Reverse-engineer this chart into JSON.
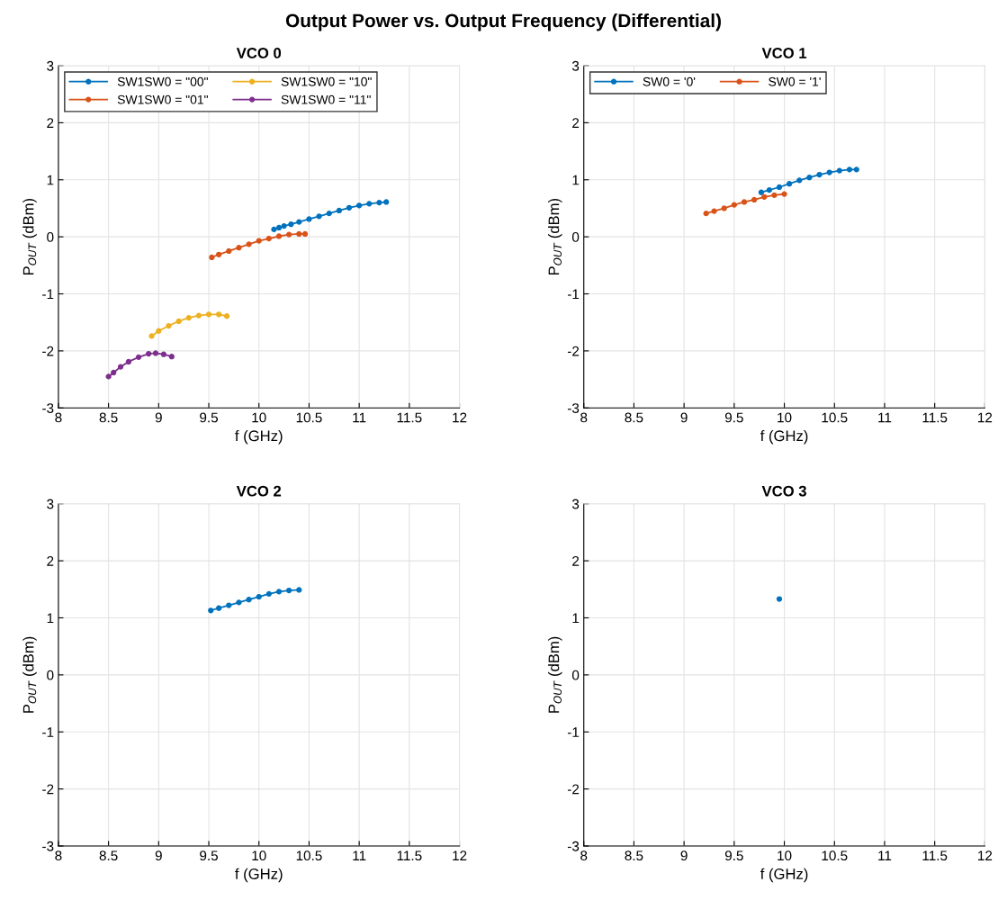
{
  "chart_data": [
    {
      "type": "line",
      "title": "VCO 0",
      "annotations": [
        "Output Power vs. Output Frequency (Differential)"
      ],
      "xlabel": "f (GHz)",
      "ylabel": "P$_{OUT}$ (dBm)",
      "xlim": [
        8,
        12
      ],
      "ylim": [
        -3,
        3
      ],
      "xticks": [
        8,
        8.5,
        9,
        9.5,
        10,
        10.5,
        11,
        11.5,
        12
      ],
      "yticks": [
        -3,
        -2,
        -1,
        0,
        1,
        2,
        3
      ],
      "grid": true,
      "legend": "top left",
      "marker": "circle",
      "line_style": "solid",
      "series": [
        {
          "name": "SW1SW0 = \"00\"",
          "color": "#0072bd",
          "x": [
            10.15,
            10.2,
            10.25,
            10.32,
            10.4,
            10.5,
            10.6,
            10.7,
            10.8,
            10.9,
            11.0,
            11.1,
            11.2,
            11.27
          ],
          "values": [
            0.13,
            0.16,
            0.19,
            0.22,
            0.26,
            0.31,
            0.36,
            0.41,
            0.46,
            0.51,
            0.55,
            0.58,
            0.6,
            0.61
          ]
        },
        {
          "name": "SW1SW0 = \"01\"",
          "color": "#d95319",
          "x": [
            9.53,
            9.6,
            9.7,
            9.8,
            9.9,
            10.0,
            10.1,
            10.2,
            10.3,
            10.4,
            10.46
          ],
          "values": [
            -0.36,
            -0.31,
            -0.25,
            -0.19,
            -0.13,
            -0.07,
            -0.03,
            0.01,
            0.04,
            0.05,
            0.05
          ]
        },
        {
          "name": "SW1SW0 = \"10\"",
          "color": "#edb120",
          "x": [
            8.93,
            9.0,
            9.1,
            9.2,
            9.3,
            9.4,
            9.5,
            9.6,
            9.68
          ],
          "values": [
            -1.74,
            -1.65,
            -1.56,
            -1.48,
            -1.42,
            -1.38,
            -1.36,
            -1.36,
            -1.39
          ]
        },
        {
          "name": "SW1SW0 = \"11\"",
          "color": "#7e2f8e",
          "x": [
            8.5,
            8.55,
            8.62,
            8.7,
            8.8,
            8.9,
            8.97,
            9.05,
            9.13
          ],
          "values": [
            -2.45,
            -2.38,
            -2.28,
            -2.19,
            -2.11,
            -2.05,
            -2.04,
            -2.06,
            -2.1
          ]
        }
      ]
    },
    {
      "type": "line",
      "title": "VCO 1",
      "xlabel": "f (GHz)",
      "ylabel": "P$_{OUT}$ (dBm)",
      "xlim": [
        8,
        12
      ],
      "ylim": [
        -3,
        3
      ],
      "xticks": [
        8,
        8.5,
        9,
        9.5,
        10,
        10.5,
        11,
        11.5,
        12
      ],
      "yticks": [
        -3,
        -2,
        -1,
        0,
        1,
        2,
        3
      ],
      "grid": true,
      "legend": "top left",
      "marker": "circle",
      "line_style": "solid",
      "series": [
        {
          "name": "SW0 = '0'",
          "color": "#0072bd",
          "x": [
            9.77,
            9.85,
            9.95,
            10.05,
            10.15,
            10.25,
            10.35,
            10.45,
            10.55,
            10.65,
            10.72
          ],
          "values": [
            0.78,
            0.82,
            0.87,
            0.93,
            0.99,
            1.04,
            1.09,
            1.13,
            1.16,
            1.18,
            1.18
          ]
        },
        {
          "name": "SW0 = '1'",
          "color": "#d95319",
          "x": [
            9.22,
            9.3,
            9.4,
            9.5,
            9.6,
            9.7,
            9.8,
            9.9,
            10.0
          ],
          "values": [
            0.41,
            0.45,
            0.5,
            0.56,
            0.61,
            0.65,
            0.7,
            0.73,
            0.75
          ]
        }
      ]
    },
    {
      "type": "line",
      "title": "VCO 2",
      "xlabel": "f (GHz)",
      "ylabel": "P$_{OUT}$ (dBm)",
      "xlim": [
        8,
        12
      ],
      "ylim": [
        -3,
        3
      ],
      "xticks": [
        8,
        8.5,
        9,
        9.5,
        10,
        10.5,
        11,
        11.5,
        12
      ],
      "yticks": [
        -3,
        -2,
        -1,
        0,
        1,
        2,
        3
      ],
      "grid": true,
      "marker": "circle",
      "line_style": "solid",
      "series": [
        {
          "color": "#0072bd",
          "x": [
            9.52,
            9.6,
            9.7,
            9.8,
            9.9,
            10.0,
            10.1,
            10.2,
            10.3,
            10.4
          ],
          "values": [
            1.13,
            1.17,
            1.22,
            1.27,
            1.32,
            1.37,
            1.42,
            1.46,
            1.48,
            1.49
          ]
        }
      ]
    },
    {
      "type": "line",
      "title": "VCO 3",
      "xlabel": "f (GHz)",
      "ylabel": "P$_{OUT}$ (dBm)",
      "xlim": [
        8,
        12
      ],
      "ylim": [
        -3,
        3
      ],
      "xticks": [
        8,
        8.5,
        9,
        9.5,
        10,
        10.5,
        11,
        11.5,
        12
      ],
      "yticks": [
        -3,
        -2,
        -1,
        0,
        1,
        2,
        3
      ],
      "grid": true,
      "marker": "circle",
      "line_style": "solid",
      "series": [
        {
          "color": "#0072bd",
          "x": [
            9.95
          ],
          "values": [
            1.33
          ]
        }
      ]
    }
  ]
}
